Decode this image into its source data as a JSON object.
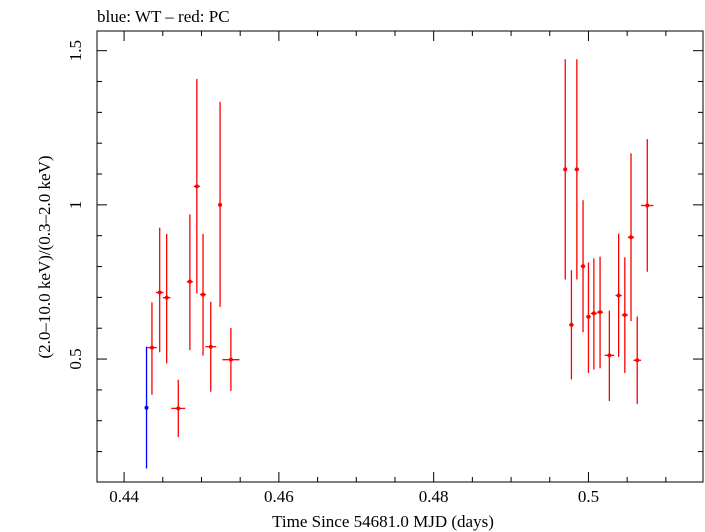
{
  "chart_data": {
    "type": "scatter",
    "title": "blue: WT – red: PC",
    "xlabel": "Time Since 54681.0 MJD (days)",
    "ylabel": "(2.0–10.0 keV)/(0.3–2.0 keV)",
    "xlim": [
      0.4365,
      0.5148
    ],
    "ylim": [
      0.1013,
      1.5638
    ],
    "xticks": [
      0.44,
      0.46,
      0.48,
      0.5
    ],
    "xtick_labels": [
      "0.44",
      "0.46",
      "0.48",
      "0.5"
    ],
    "yticks": [
      0.5,
      1.0,
      1.5
    ],
    "ytick_labels": [
      "0.5",
      "1",
      "1.5"
    ],
    "grid": false,
    "series": [
      {
        "name": "WT",
        "color": "#0000ff",
        "points": [
          {
            "x": 0.4429,
            "xerr": 0.0,
            "y": 0.342,
            "ylo": 0.145,
            "yhi": 0.54
          }
        ]
      },
      {
        "name": "PC",
        "color": "#ff0000",
        "points": [
          {
            "x": 0.4436,
            "xerr": 0.0006,
            "y": 0.537,
            "ylo": 0.384,
            "yhi": 0.684
          },
          {
            "x": 0.4446,
            "xerr": 0.0005,
            "y": 0.716,
            "ylo": 0.522,
            "yhi": 0.926
          },
          {
            "x": 0.4455,
            "xerr": 0.0005,
            "y": 0.699,
            "ylo": 0.486,
            "yhi": 0.906
          },
          {
            "x": 0.447,
            "xerr": 0.0009,
            "y": 0.34,
            "ylo": 0.247,
            "yhi": 0.433
          },
          {
            "x": 0.4485,
            "xerr": 0.0004,
            "y": 0.751,
            "ylo": 0.529,
            "yhi": 0.969
          },
          {
            "x": 0.4494,
            "xerr": 0.0004,
            "y": 1.06,
            "ylo": 0.713,
            "yhi": 1.408
          },
          {
            "x": 0.4502,
            "xerr": 0.0004,
            "y": 0.709,
            "ylo": 0.511,
            "yhi": 0.906
          },
          {
            "x": 0.4512,
            "xerr": 0.0007,
            "y": 0.54,
            "ylo": 0.394,
            "yhi": 0.686
          },
          {
            "x": 0.4524,
            "xerr": 0.0002,
            "y": 1.0,
            "ylo": 0.669,
            "yhi": 1.334
          },
          {
            "x": 0.4538,
            "xerr": 0.0011,
            "y": 0.498,
            "ylo": 0.397,
            "yhi": 0.601
          },
          {
            "x": 0.497,
            "xerr": 0.0002,
            "y": 1.115,
            "ylo": 0.758,
            "yhi": 1.472
          },
          {
            "x": 0.4978,
            "xerr": 0.0003,
            "y": 0.611,
            "ylo": 0.434,
            "yhi": 0.788
          },
          {
            "x": 0.4985,
            "xerr": 0.0003,
            "y": 1.115,
            "ylo": 0.758,
            "yhi": 1.472
          },
          {
            "x": 0.4993,
            "xerr": 0.0003,
            "y": 0.801,
            "ylo": 0.587,
            "yhi": 1.015
          },
          {
            "x": 0.5,
            "xerr": 0.0003,
            "y": 0.637,
            "ylo": 0.455,
            "yhi": 0.813
          },
          {
            "x": 0.5007,
            "xerr": 0.0004,
            "y": 0.648,
            "ylo": 0.466,
            "yhi": 0.826
          },
          {
            "x": 0.5015,
            "xerr": 0.0004,
            "y": 0.652,
            "ylo": 0.47,
            "yhi": 0.832
          },
          {
            "x": 0.5027,
            "xerr": 0.0006,
            "y": 0.512,
            "ylo": 0.364,
            "yhi": 0.657
          },
          {
            "x": 0.5039,
            "xerr": 0.0004,
            "y": 0.706,
            "ylo": 0.507,
            "yhi": 0.907
          },
          {
            "x": 0.5047,
            "xerr": 0.0004,
            "y": 0.643,
            "ylo": 0.455,
            "yhi": 0.83
          },
          {
            "x": 0.5055,
            "xerr": 0.0004,
            "y": 0.895,
            "ylo": 0.623,
            "yhi": 1.167
          },
          {
            "x": 0.5063,
            "xerr": 0.0005,
            "y": 0.496,
            "ylo": 0.354,
            "yhi": 0.638
          },
          {
            "x": 0.5076,
            "xerr": 0.0008,
            "y": 0.998,
            "ylo": 0.783,
            "yhi": 1.213
          }
        ]
      }
    ]
  }
}
